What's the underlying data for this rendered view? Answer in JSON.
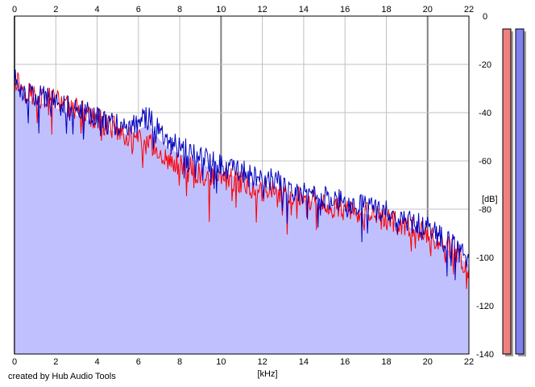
{
  "credit": "created by Hub Audio Tools",
  "colors": {
    "background": "#ffffff",
    "fill": "#c0c0ff",
    "left_channel": "#ff0000",
    "right_channel": "#0000c0",
    "grid_minor": "#c0c0c0",
    "grid_major": "#808080",
    "meter_left": "#f08080",
    "meter_right": "#8080f0"
  },
  "chart_data": {
    "type": "line",
    "xlabel": "[kHz]",
    "ylabel": "[dB]",
    "xlim": [
      0,
      22
    ],
    "ylim": [
      -140,
      0
    ],
    "x_ticks": [
      0,
      2,
      4,
      6,
      8,
      10,
      12,
      14,
      16,
      18,
      20,
      22
    ],
    "y_ticks": [
      0,
      -20,
      -40,
      -60,
      -80,
      -100,
      -120,
      -140
    ],
    "grid": true,
    "series": [
      {
        "color": "#ff0000",
        "x": [
          0,
          0.5,
          1,
          1.5,
          2,
          2.5,
          3,
          3.5,
          4,
          4.5,
          5,
          5.5,
          6,
          6.5,
          7,
          7.5,
          8,
          8.5,
          9,
          9.5,
          10,
          10.5,
          11,
          11.5,
          12,
          12.5,
          13,
          13.5,
          14,
          14.5,
          15,
          15.5,
          16,
          16.5,
          17,
          17.5,
          18,
          18.5,
          19,
          19.5,
          20,
          20.5,
          21,
          21.5,
          22
        ],
        "y": [
          -25,
          -31,
          -33,
          -34,
          -35,
          -37,
          -38,
          -41,
          -43,
          -45,
          -47,
          -50,
          -52,
          -53,
          -56,
          -60,
          -62,
          -63,
          -66,
          -68,
          -67,
          -68,
          -69,
          -71,
          -72,
          -72,
          -74,
          -75,
          -76,
          -77,
          -78,
          -79,
          -80,
          -81,
          -82,
          -83,
          -84,
          -86,
          -87,
          -89,
          -91,
          -94,
          -96,
          -99,
          -104
        ]
      },
      {
        "color": "#0000c0",
        "x": [
          0,
          0.5,
          1,
          1.5,
          2,
          2.5,
          3,
          3.5,
          4,
          4.5,
          5,
          5.5,
          6,
          6.5,
          7,
          7.5,
          8,
          8.5,
          9,
          9.5,
          10,
          10.5,
          11,
          11.5,
          12,
          12.5,
          13,
          13.5,
          14,
          14.5,
          15,
          15.5,
          16,
          16.5,
          17,
          17.5,
          18,
          18.5,
          19,
          19.5,
          20,
          20.5,
          21,
          21.5,
          22
        ],
        "y": [
          -26,
          -32,
          -34,
          -33,
          -36,
          -37,
          -39,
          -40,
          -42,
          -44,
          -45,
          -46,
          -44,
          -42,
          -48,
          -52,
          -54,
          -56,
          -58,
          -60,
          -62,
          -63,
          -64,
          -66,
          -67,
          -68,
          -70,
          -72,
          -73,
          -74,
          -75,
          -76,
          -77,
          -78,
          -79,
          -80,
          -81,
          -83,
          -84,
          -86,
          -88,
          -91,
          -94,
          -97,
          -100
        ]
      }
    ],
    "level_meters": [
      {
        "color": "#f08080",
        "value_db": -5
      },
      {
        "color": "#8080f0",
        "value_db": -5
      }
    ]
  }
}
